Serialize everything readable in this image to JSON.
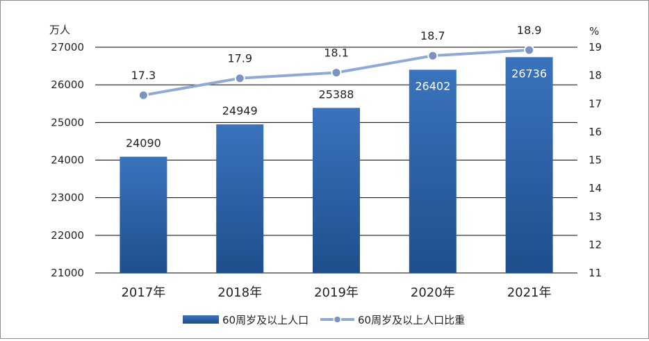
{
  "chart_data": {
    "type": "bar+line",
    "categories": [
      "2017年",
      "2018年",
      "2019年",
      "2020年",
      "2021年"
    ],
    "series": [
      {
        "name": "60周岁及以上人口",
        "type": "bar",
        "axis": "left",
        "values": [
          24090,
          24949,
          25388,
          26402,
          26736
        ],
        "color": "#2e63a8"
      },
      {
        "name": "60周岁及以上人口比重",
        "type": "line",
        "axis": "right",
        "values": [
          17.3,
          17.9,
          18.1,
          18.7,
          18.9
        ],
        "color": "#8fa8d4"
      }
    ],
    "left_axis": {
      "unit": "万人",
      "ylim": [
        21000,
        27000
      ],
      "ticks": [
        "21000",
        "22000",
        "23000",
        "24000",
        "25000",
        "26000",
        "27000"
      ]
    },
    "right_axis": {
      "unit": "%",
      "ylim": [
        11,
        19
      ],
      "ticks": [
        "11",
        "12",
        "13",
        "14",
        "15",
        "16",
        "17",
        "18",
        "19"
      ]
    },
    "grid": true,
    "legend_position": "bottom"
  }
}
